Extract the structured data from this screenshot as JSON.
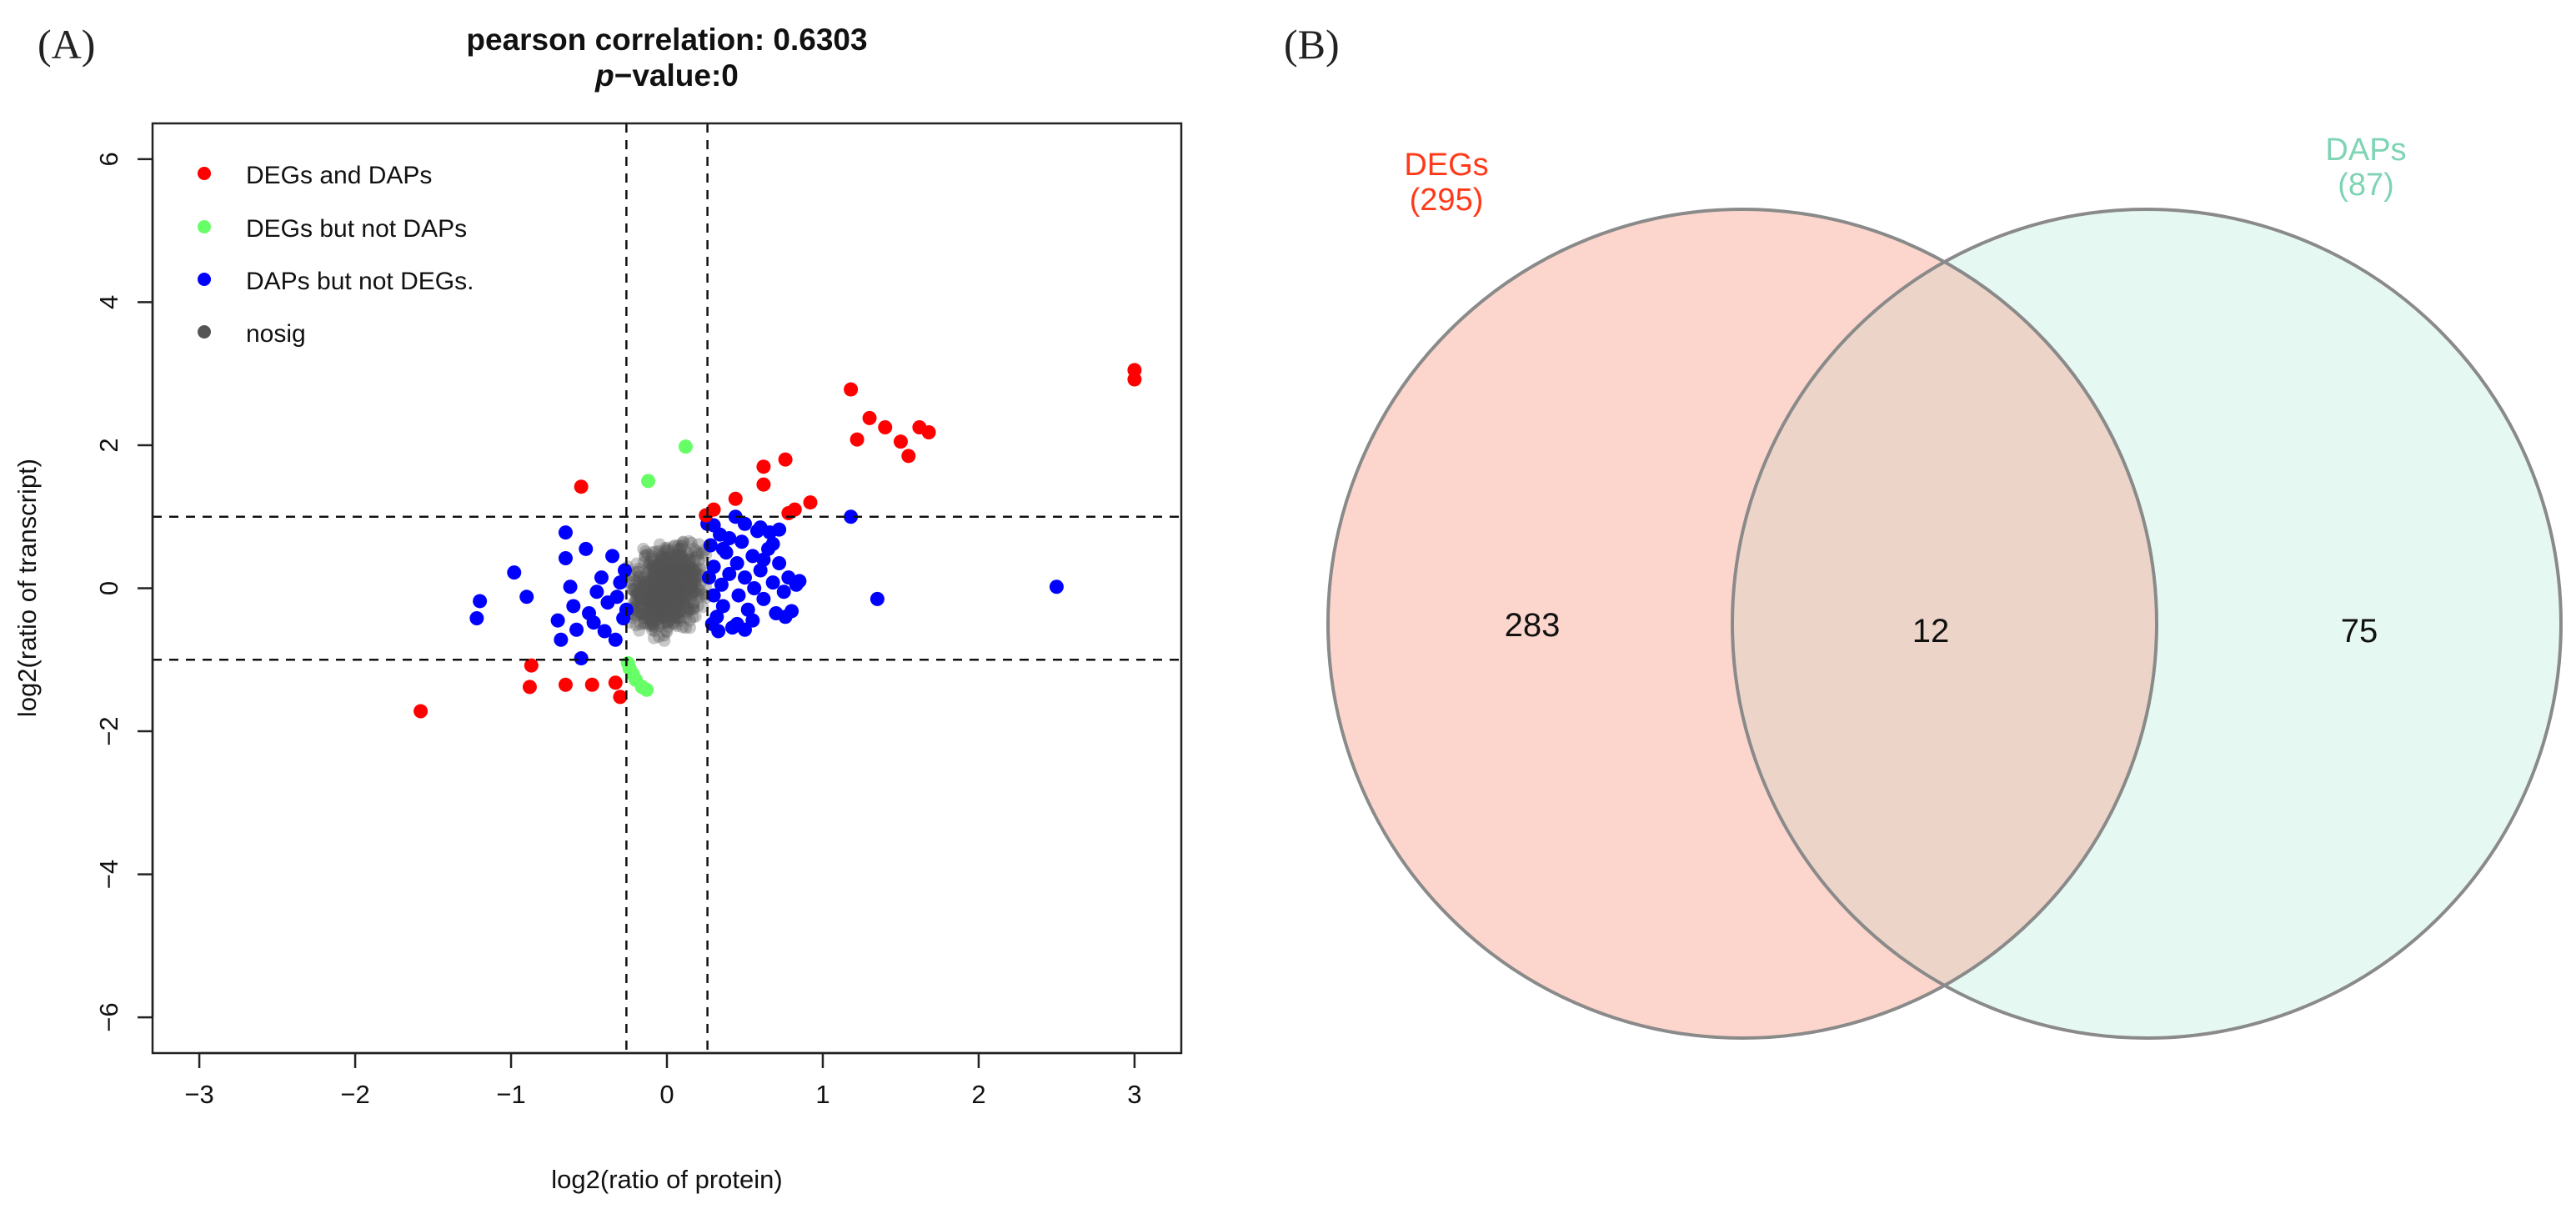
{
  "panels": {
    "a_label": "(A)",
    "b_label": "(B)"
  },
  "colors": {
    "degs_and_daps": "#ff0000",
    "degs_not_daps": "#66ff66",
    "daps_not_degs": "#0000ff",
    "nosig": "#555555",
    "venn_left_fill": "#fcd6cc",
    "venn_right_fill": "#e6f8f2",
    "venn_overlap_fill": "#ecd5c8",
    "venn_stroke": "#8a8a8a",
    "degs_label": "#ff3a1a",
    "daps_label": "#7fd4b4"
  },
  "chart_data": [
    {
      "type": "scatter",
      "title": "pearson correlation: 0.6303",
      "subtitle_italic": "p",
      "subtitle_rest": "−value:0",
      "xlabel": "log2(ratio of protein)",
      "ylabel": "log2(ratio of transcript)",
      "xlim": [
        -3.3,
        3.3
      ],
      "ylim": [
        -6.5,
        6.5
      ],
      "xticks": [
        -3,
        -2,
        -1,
        0,
        1,
        2,
        3
      ],
      "yticks": [
        -6,
        -4,
        -2,
        0,
        2,
        4,
        6
      ],
      "xtick_labels": [
        "−3",
        "−2",
        "−1",
        "0",
        "1",
        "2",
        "3"
      ],
      "ytick_labels": [
        "−6",
        "−4",
        "−2",
        "0",
        "2",
        "4",
        "6"
      ],
      "thresholds": {
        "x": [
          -0.26,
          0.26
        ],
        "y": [
          -1,
          1
        ]
      },
      "legend_position": "top-left",
      "series": [
        {
          "name": "DEGs and DAPs",
          "color_key": "degs_and_daps",
          "points": [
            [
              3.0,
              3.05
            ],
            [
              3.0,
              2.92
            ],
            [
              1.18,
              2.78
            ],
            [
              1.3,
              2.38
            ],
            [
              1.4,
              2.25
            ],
            [
              1.22,
              2.08
            ],
            [
              1.5,
              2.05
            ],
            [
              1.62,
              2.25
            ],
            [
              1.68,
              2.18
            ],
            [
              1.55,
              1.85
            ],
            [
              0.76,
              1.8
            ],
            [
              0.62,
              1.7
            ],
            [
              0.62,
              1.45
            ],
            [
              0.44,
              1.25
            ],
            [
              0.92,
              1.2
            ],
            [
              0.82,
              1.1
            ],
            [
              0.78,
              1.05
            ],
            [
              0.3,
              1.1
            ],
            [
              0.25,
              1.02
            ],
            [
              -0.55,
              1.42
            ],
            [
              -1.58,
              -1.72
            ],
            [
              -0.88,
              -1.38
            ],
            [
              -0.87,
              -1.08
            ],
            [
              -0.65,
              -1.35
            ],
            [
              -0.48,
              -1.35
            ],
            [
              -0.33,
              -1.32
            ],
            [
              -0.3,
              -1.52
            ]
          ]
        },
        {
          "name": "DEGs but not DAPs",
          "color_key": "degs_not_daps",
          "points": [
            [
              0.12,
              1.98
            ],
            [
              -0.12,
              1.5
            ],
            [
              -0.24,
              -1.12
            ],
            [
              -0.22,
              -1.2
            ],
            [
              -0.2,
              -1.28
            ],
            [
              -0.16,
              -1.38
            ],
            [
              -0.13,
              -1.42
            ],
            [
              -0.25,
              -1.05
            ]
          ]
        },
        {
          "name": "DAPs but not DEGs.",
          "color_key": "daps_not_degs",
          "points": [
            [
              2.5,
              0.02
            ],
            [
              1.35,
              -0.15
            ],
            [
              1.18,
              1.0
            ],
            [
              -1.2,
              -0.18
            ],
            [
              -1.22,
              -0.42
            ],
            [
              -0.98,
              0.22
            ],
            [
              -0.9,
              -0.12
            ],
            [
              -0.65,
              0.78
            ],
            [
              -0.65,
              0.42
            ],
            [
              -0.62,
              0.02
            ],
            [
              -0.6,
              -0.25
            ],
            [
              -0.58,
              -0.58
            ],
            [
              -0.55,
              -0.98
            ],
            [
              -0.5,
              -0.35
            ],
            [
              -0.45,
              -0.05
            ],
            [
              -0.42,
              0.15
            ],
            [
              -0.4,
              -0.6
            ],
            [
              -0.38,
              -0.2
            ],
            [
              -0.35,
              0.45
            ],
            [
              -0.33,
              -0.72
            ],
            [
              -0.32,
              -0.12
            ],
            [
              -0.3,
              0.08
            ],
            [
              -0.28,
              -0.42
            ],
            [
              -0.27,
              0.25
            ],
            [
              -0.26,
              -0.3
            ],
            [
              -0.47,
              -0.48
            ],
            [
              -0.52,
              0.55
            ],
            [
              -0.7,
              -0.45
            ],
            [
              -0.68,
              -0.72
            ],
            [
              0.26,
              0.9
            ],
            [
              0.28,
              0.6
            ],
            [
              0.3,
              0.3
            ],
            [
              0.3,
              -0.1
            ],
            [
              0.32,
              -0.4
            ],
            [
              0.34,
              0.75
            ],
            [
              0.35,
              0.05
            ],
            [
              0.36,
              -0.25
            ],
            [
              0.38,
              0.5
            ],
            [
              0.4,
              0.2
            ],
            [
              0.42,
              -0.55
            ],
            [
              0.44,
              1.0
            ],
            [
              0.45,
              0.35
            ],
            [
              0.46,
              -0.1
            ],
            [
              0.48,
              0.65
            ],
            [
              0.5,
              0.15
            ],
            [
              0.52,
              -0.3
            ],
            [
              0.55,
              0.45
            ],
            [
              0.56,
              0.0
            ],
            [
              0.58,
              0.8
            ],
            [
              0.6,
              0.25
            ],
            [
              0.62,
              -0.15
            ],
            [
              0.65,
              0.55
            ],
            [
              0.68,
              0.08
            ],
            [
              0.7,
              -0.35
            ],
            [
              0.72,
              0.35
            ],
            [
              0.75,
              -0.05
            ],
            [
              0.78,
              0.15
            ],
            [
              0.8,
              -0.32
            ],
            [
              0.83,
              0.05
            ],
            [
              0.85,
              0.1
            ],
            [
              0.6,
              0.85
            ],
            [
              0.66,
              0.78
            ],
            [
              0.72,
              0.82
            ],
            [
              0.5,
              0.9
            ],
            [
              0.4,
              0.7
            ],
            [
              0.55,
              -0.45
            ],
            [
              0.45,
              -0.5
            ],
            [
              0.76,
              -0.4
            ],
            [
              0.3,
              0.88
            ],
            [
              0.29,
              -0.5
            ],
            [
              0.33,
              -0.6
            ],
            [
              0.68,
              0.62
            ],
            [
              0.36,
              0.55
            ],
            [
              0.5,
              -0.58
            ],
            [
              0.62,
              0.4
            ],
            [
              0.27,
              0.15
            ]
          ]
        },
        {
          "name": "nosig",
          "color_key": "nosig",
          "cluster": {
            "count": 900,
            "center_x": 0.0,
            "center_y": 0.0,
            "range_x": 0.3,
            "range_y": 0.95,
            "opacity": 0.32
          }
        }
      ]
    },
    {
      "type": "venn",
      "sets": [
        {
          "name": "DEGs",
          "size_label": "(295)",
          "only": 283,
          "fill_key": "venn_left_fill",
          "label_color_key": "degs_label"
        },
        {
          "name": "DAPs",
          "size_label": "(87)",
          "only": 75,
          "fill_key": "venn_right_fill",
          "label_color_key": "daps_label"
        }
      ],
      "intersection": 12
    }
  ]
}
